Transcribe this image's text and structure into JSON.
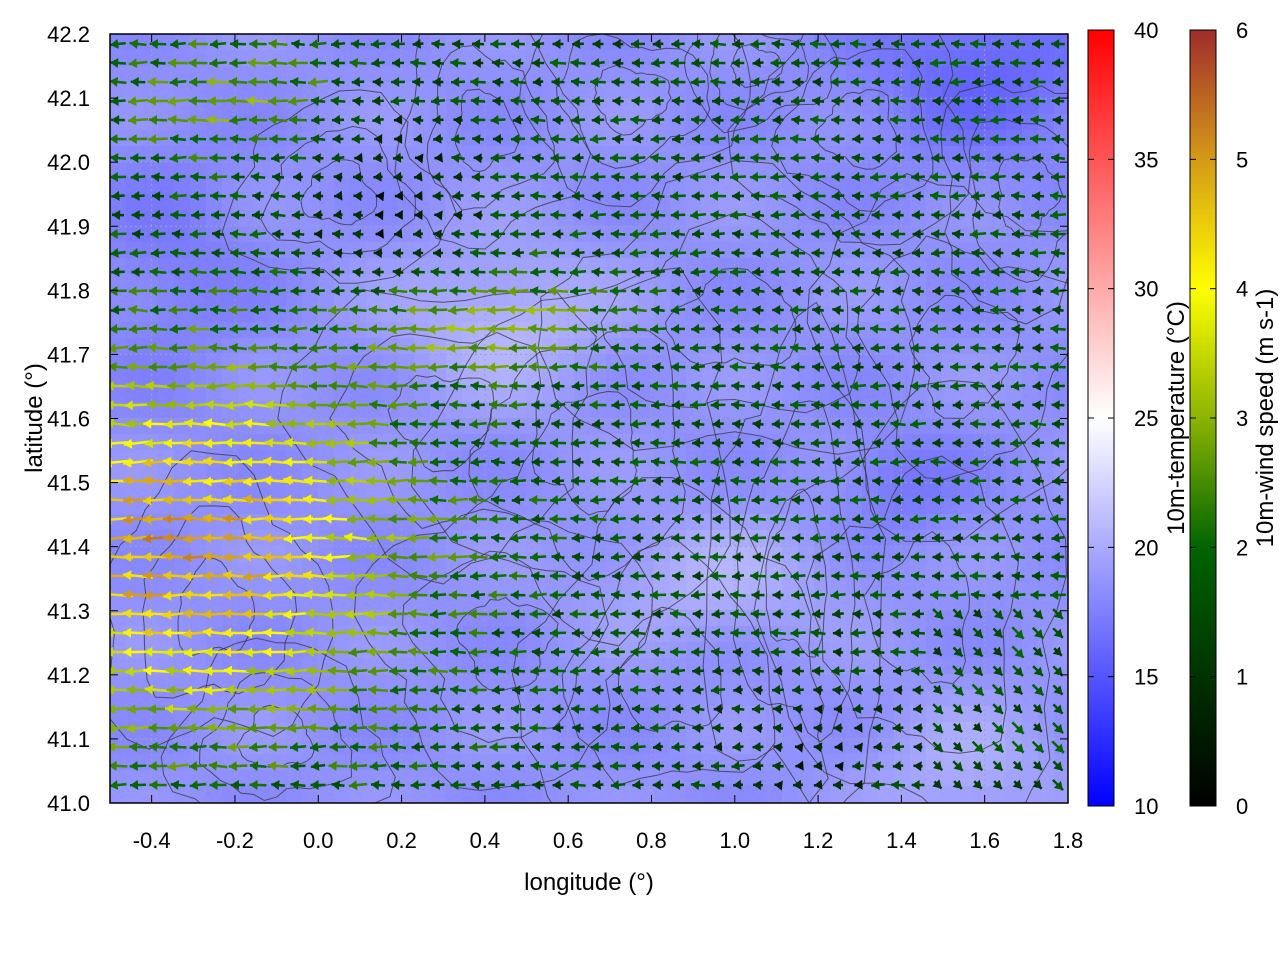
{
  "chart_data": {
    "type": "heatmap",
    "title": "",
    "xlabel": "longitude (°)",
    "ylabel": "latitude (°)",
    "xlim": [
      -0.5,
      1.8
    ],
    "ylim": [
      41.0,
      42.2
    ],
    "x_ticks": [
      "-0.4",
      "-0.2",
      "0.0",
      "0.2",
      "0.4",
      "0.6",
      "0.8",
      "1.0",
      "1.2",
      "1.4",
      "1.6",
      "1.8"
    ],
    "y_ticks": [
      "41.0",
      "41.1",
      "41.2",
      "41.3",
      "41.4",
      "41.5",
      "41.6",
      "41.7",
      "41.8",
      "41.9",
      "42.0",
      "42.1",
      "42.2"
    ],
    "grid": true,
    "background_field": {
      "name": "10m-temperature",
      "colorbar_label": "10m-temperature (°C)",
      "range": [
        10,
        40
      ],
      "ticks": [
        "10",
        "15",
        "20",
        "25",
        "30",
        "35",
        "40"
      ],
      "colors": [
        "#0000ff",
        "#ffffff",
        "#ff0000"
      ],
      "approx_value_range_shown": [
        16,
        22
      ]
    },
    "vector_field": {
      "name": "10m-wind speed",
      "colorbar_label": "10m-wind speed (m s-1)",
      "range": [
        0,
        6
      ],
      "ticks": [
        "0",
        "1",
        "2",
        "3",
        "4",
        "5",
        "6"
      ],
      "colors": [
        "#000000",
        "#006400",
        "#a0c000",
        "#ffff00",
        "#d4a017",
        "#a02c2c"
      ],
      "dominant_direction": "westward (arrows point to decreasing longitude)",
      "southeast_corner_direction": "south-eastward",
      "max_speed_region": "west side, latitude 41.1–41.6"
    },
    "contours": "terrain elevation isolines (dark gray)"
  }
}
